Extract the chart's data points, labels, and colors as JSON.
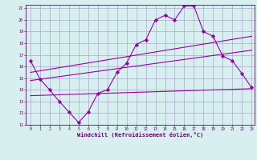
{
  "xlabel": "Windchill (Refroidissement éolien,°C)",
  "bg_color": "#d8eff0",
  "grid_color": "#aaaacc",
  "line_color": "#990099",
  "xlim": [
    -0.5,
    23.3
  ],
  "ylim": [
    11,
    21.3
  ],
  "xticks": [
    0,
    1,
    2,
    3,
    4,
    5,
    6,
    7,
    8,
    9,
    10,
    11,
    12,
    13,
    14,
    15,
    16,
    17,
    18,
    19,
    20,
    21,
    22,
    23
  ],
  "yticks": [
    11,
    12,
    13,
    14,
    15,
    16,
    17,
    18,
    19,
    20,
    21
  ],
  "line1_x": [
    0,
    1,
    2,
    3,
    4,
    5,
    6,
    7,
    8,
    9,
    10,
    11,
    12,
    13,
    14,
    15,
    16,
    17,
    18,
    19,
    20,
    21,
    22,
    23
  ],
  "line1_y": [
    16.5,
    14.9,
    14.0,
    13.0,
    12.1,
    11.2,
    12.1,
    13.7,
    14.0,
    15.5,
    16.3,
    17.9,
    18.3,
    20.0,
    20.4,
    20.0,
    21.2,
    21.2,
    19.0,
    18.6,
    16.9,
    16.5,
    15.4,
    14.2
  ],
  "line2_x": [
    0,
    23
  ],
  "line2_y": [
    15.5,
    18.6
  ],
  "line3_x": [
    0,
    23
  ],
  "line3_y": [
    14.8,
    17.4
  ],
  "line4_x": [
    0,
    23
  ],
  "line4_y": [
    13.5,
    14.1
  ]
}
